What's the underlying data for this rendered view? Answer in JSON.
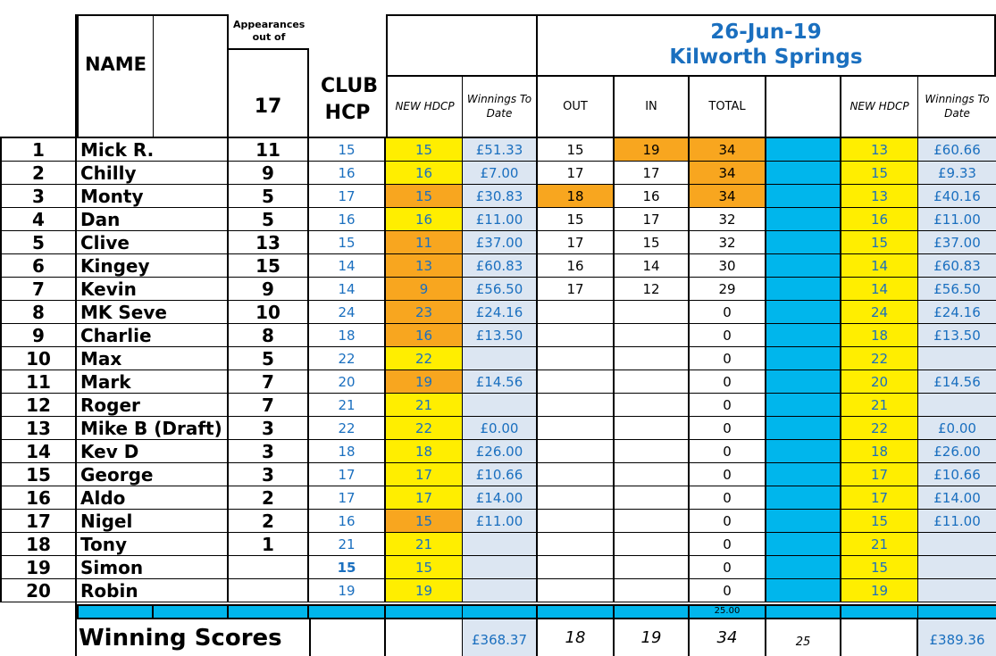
{
  "header": {
    "name": "NAME",
    "appearances_label": "Appearances out of",
    "appearances_total": "17",
    "club_hcp": "CLUB HCP",
    "new_hdcp": "NEW HDCP",
    "winnings_to_date": "Winnings To Date",
    "date": "26-Jun-19",
    "course": "Kilworth Springs",
    "out": "OUT",
    "in": "IN",
    "total": "TOTAL",
    "new_hdcp_2": "NEW HDCP",
    "winnings_to_date_2": "Winnings To Date"
  },
  "rows": [
    {
      "no": "1",
      "name": "Mick R.",
      "apps": "11",
      "club": "15",
      "nh": "15",
      "nh_c": "y",
      "win": "£51.33",
      "out": "15",
      "out_c": "",
      "in": "19",
      "in_c": "o",
      "total": "34",
      "total_c": "o",
      "nh2": "13",
      "win2": "£60.66"
    },
    {
      "no": "2",
      "name": "Chilly",
      "apps": "9",
      "club": "16",
      "nh": "16",
      "nh_c": "y",
      "win": "£7.00",
      "out": "17",
      "out_c": "",
      "in": "17",
      "in_c": "",
      "total": "34",
      "total_c": "o",
      "nh2": "15",
      "win2": "£9.33"
    },
    {
      "no": "3",
      "name": "Monty",
      "apps": "5",
      "club": "17",
      "nh": "15",
      "nh_c": "o",
      "win": "£30.83",
      "out": "18",
      "out_c": "o",
      "in": "16",
      "in_c": "",
      "total": "34",
      "total_c": "o",
      "nh2": "13",
      "win2": "£40.16"
    },
    {
      "no": "4",
      "name": "Dan",
      "apps": "5",
      "club": "16",
      "nh": "16",
      "nh_c": "y",
      "win": "£11.00",
      "out": "15",
      "out_c": "",
      "in": "17",
      "in_c": "",
      "total": "32",
      "total_c": "",
      "nh2": "16",
      "win2": "£11.00"
    },
    {
      "no": "5",
      "name": "Clive",
      "apps": "13",
      "club": "15",
      "nh": "11",
      "nh_c": "o",
      "win": "£37.00",
      "out": "17",
      "out_c": "",
      "in": "15",
      "in_c": "",
      "total": "32",
      "total_c": "",
      "nh2": "15",
      "win2": "£37.00"
    },
    {
      "no": "6",
      "name": "Kingey",
      "apps": "15",
      "club": "14",
      "nh": "13",
      "nh_c": "o",
      "win": "£60.83",
      "out": "16",
      "out_c": "",
      "in": "14",
      "in_c": "",
      "total": "30",
      "total_c": "",
      "nh2": "14",
      "win2": "£60.83"
    },
    {
      "no": "7",
      "name": "Kevin",
      "apps": "9",
      "club": "14",
      "nh": "9",
      "nh_c": "o",
      "win": "£56.50",
      "out": "17",
      "out_c": "",
      "in": "12",
      "in_c": "",
      "total": "29",
      "total_c": "",
      "nh2": "14",
      "win2": "£56.50"
    },
    {
      "no": "8",
      "name": "MK Seve",
      "apps": "10",
      "club": "24",
      "nh": "23",
      "nh_c": "o",
      "win": "£24.16",
      "out": "",
      "out_c": "",
      "in": "",
      "in_c": "",
      "total": "0",
      "total_c": "",
      "nh2": "24",
      "win2": "£24.16"
    },
    {
      "no": "9",
      "name": "Charlie",
      "apps": "8",
      "club": "18",
      "nh": "16",
      "nh_c": "o",
      "win": "£13.50",
      "out": "",
      "out_c": "",
      "in": "",
      "in_c": "",
      "total": "0",
      "total_c": "",
      "nh2": "18",
      "win2": "£13.50"
    },
    {
      "no": "10",
      "name": "Max",
      "apps": "5",
      "club": "22",
      "nh": "22",
      "nh_c": "y",
      "win": "",
      "out": "",
      "out_c": "",
      "in": "",
      "in_c": "",
      "total": "0",
      "total_c": "",
      "nh2": "22",
      "win2": ""
    },
    {
      "no": "11",
      "name": "Mark",
      "apps": "7",
      "club": "20",
      "nh": "19",
      "nh_c": "o",
      "win": "£14.56",
      "out": "",
      "out_c": "",
      "in": "",
      "in_c": "",
      "total": "0",
      "total_c": "",
      "nh2": "20",
      "win2": "£14.56"
    },
    {
      "no": "12",
      "name": "Roger",
      "apps": "7",
      "club": "21",
      "nh": "21",
      "nh_c": "y",
      "win": "",
      "out": "",
      "out_c": "",
      "in": "",
      "in_c": "",
      "total": "0",
      "total_c": "",
      "nh2": "21",
      "win2": ""
    },
    {
      "no": "13",
      "name": "Mike B (Draft)",
      "apps": "3",
      "club": "22",
      "nh": "22",
      "nh_c": "y",
      "win": "£0.00",
      "out": "",
      "out_c": "",
      "in": "",
      "in_c": "",
      "total": "0",
      "total_c": "",
      "nh2": "22",
      "win2": "£0.00"
    },
    {
      "no": "14",
      "name": "Kev D",
      "apps": "3",
      "club": "18",
      "nh": "18",
      "nh_c": "y",
      "win": "£26.00",
      "out": "",
      "out_c": "",
      "in": "",
      "in_c": "",
      "total": "0",
      "total_c": "",
      "nh2": "18",
      "win2": "£26.00"
    },
    {
      "no": "15",
      "name": "George",
      "apps": "3",
      "club": "17",
      "nh": "17",
      "nh_c": "y",
      "win": "£10.66",
      "out": "",
      "out_c": "",
      "in": "",
      "in_c": "",
      "total": "0",
      "total_c": "",
      "nh2": "17",
      "win2": "£10.66"
    },
    {
      "no": "16",
      "name": "Aldo",
      "apps": "2",
      "club": "17",
      "nh": "17",
      "nh_c": "y",
      "win": "£14.00",
      "out": "",
      "out_c": "",
      "in": "",
      "in_c": "",
      "total": "0",
      "total_c": "",
      "nh2": "17",
      "win2": "£14.00"
    },
    {
      "no": "17",
      "name": "Nigel",
      "apps": "2",
      "club": "16",
      "nh": "15",
      "nh_c": "o",
      "win": "£11.00",
      "out": "",
      "out_c": "",
      "in": "",
      "in_c": "",
      "total": "0",
      "total_c": "",
      "nh2": "15",
      "win2": "£11.00"
    },
    {
      "no": "18",
      "name": "Tony",
      "apps": "1",
      "club": "21",
      "nh": "21",
      "nh_c": "y",
      "win": "",
      "out": "",
      "out_c": "",
      "in": "",
      "in_c": "",
      "total": "0",
      "total_c": "",
      "nh2": "21",
      "win2": ""
    },
    {
      "no": "19",
      "name": "Simon",
      "apps": "",
      "club": "15",
      "club_bold": true,
      "nh": "15",
      "nh_c": "y",
      "win": "",
      "out": "",
      "out_c": "",
      "in": "",
      "in_c": "",
      "total": "0",
      "total_c": "",
      "nh2": "15",
      "win2": ""
    },
    {
      "no": "20",
      "name": "Robin",
      "apps": "",
      "club": "19",
      "nh": "19",
      "nh_c": "y",
      "win": "",
      "out": "",
      "out_c": "",
      "in": "",
      "in_c": "",
      "total": "0",
      "total_c": "",
      "nh2": "19",
      "win2": ""
    }
  ],
  "bar_row": {
    "total": "25.00"
  },
  "footer": {
    "label": "Winning Scores",
    "winnings": "£368.37",
    "out": "18",
    "in": "19",
    "total": "34",
    "extra": "25",
    "winnings2": "£389.36"
  },
  "colors": {
    "yellow": "#ffee00",
    "orange": "#f8a61f",
    "cyan": "#00b6ec",
    "light_blue": "#dce6f2",
    "blue_text": "#1a6fbf"
  }
}
